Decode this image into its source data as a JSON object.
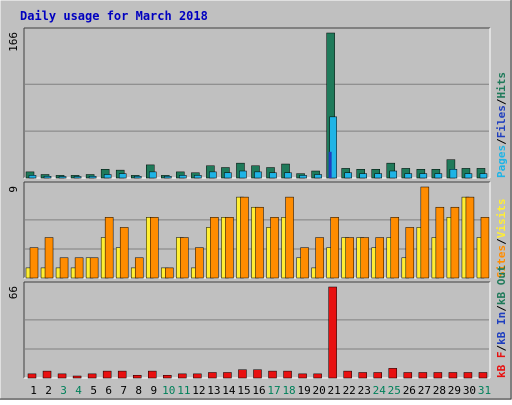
{
  "chart_data": {
    "type": "bar",
    "title": "Daily usage for March 2018",
    "x_categories": [
      "1",
      "2",
      "3",
      "4",
      "5",
      "6",
      "7",
      "8",
      "9",
      "10",
      "11",
      "12",
      "13",
      "14",
      "15",
      "16",
      "17",
      "18",
      "19",
      "20",
      "21",
      "22",
      "23",
      "24",
      "25",
      "26",
      "27",
      "28",
      "29",
      "30",
      "31"
    ],
    "weekend_days": [
      3,
      4,
      10,
      11,
      17,
      18,
      24,
      25,
      31
    ],
    "panels": [
      {
        "id": "hits",
        "y_max_label": "166",
        "ylim": [
          0,
          166
        ],
        "series": [
          {
            "name": "Hits",
            "color": "#1f7a5a",
            "values": [
              7,
              4,
              3,
              3,
              4,
              10,
              9,
              3,
              15,
              3,
              7,
              6,
              14,
              12,
              17,
              14,
              12,
              16,
              5,
              8,
              166,
              11,
              10,
              10,
              17,
              11,
              10,
              10,
              21,
              11,
              11
            ]
          },
          {
            "name": "Files",
            "color": "#1f3fbf",
            "values": [
              1,
              1,
              1,
              1,
              1,
              1,
              1,
              1,
              1,
              1,
              1,
              1,
              1,
              1,
              1,
              1,
              1,
              1,
              1,
              1,
              30,
              1,
              1,
              1,
              1,
              1,
              1,
              1,
              1,
              1,
              1
            ]
          },
          {
            "name": "Pages",
            "color": "#1fb4e6",
            "values": [
              3,
              2,
              1,
              1,
              2,
              4,
              5,
              2,
              7,
              2,
              3,
              3,
              7,
              6,
              8,
              7,
              6,
              6,
              3,
              4,
              70,
              6,
              5,
              5,
              8,
              5,
              5,
              5,
              10,
              5,
              5
            ]
          }
        ]
      },
      {
        "id": "visits",
        "y_max_label": "9",
        "ylim": [
          0,
          9
        ],
        "series": [
          {
            "name": "Visits",
            "color": "#ffee33",
            "values": [
              1,
              1,
              1,
              1,
              2,
              4,
              3,
              1,
              6,
              1,
              4,
              1,
              5,
              6,
              8,
              7,
              5,
              6,
              2,
              1,
              3,
              4,
              4,
              3,
              4,
              2,
              5,
              4,
              6,
              8,
              4
            ]
          },
          {
            "name": "Sites",
            "color": "#ff8c00",
            "values": [
              3,
              4,
              2,
              2,
              2,
              6,
              5,
              2,
              6,
              1,
              4,
              3,
              6,
              6,
              8,
              7,
              6,
              8,
              3,
              4,
              6,
              4,
              4,
              4,
              6,
              5,
              9,
              7,
              7,
              8,
              6
            ]
          }
        ]
      },
      {
        "id": "kbytes",
        "y_max_label": "66",
        "ylim": [
          0,
          66
        ],
        "series": [
          {
            "name": "kB In",
            "color": "#1f3fbf",
            "values": [
              0,
              0,
              0,
              0,
              0,
              0,
              0,
              0,
              0,
              0,
              0,
              0,
              0,
              0,
              0,
              0,
              0,
              0,
              0,
              0,
              0,
              0,
              0,
              0,
              0,
              0,
              0,
              0,
              0,
              0,
              0
            ]
          },
          {
            "name": "kB Out",
            "color": "#1f7a5a",
            "values": [
              0,
              0,
              0,
              0,
              0,
              0,
              0,
              0,
              0,
              0,
              0,
              0,
              0,
              0,
              0,
              0,
              0,
              0,
              0,
              0,
              0,
              0,
              0,
              0,
              0,
              0,
              0,
              0,
              0,
              0,
              0
            ]
          },
          {
            "name": "kB F",
            "color": "#e81010",
            "values": [
              3,
              5,
              3,
              1,
              3,
              5,
              5,
              2,
              5,
              2,
              3,
              3,
              4,
              4,
              6,
              6,
              5,
              5,
              3,
              3,
              66,
              5,
              4,
              4,
              7,
              4,
              4,
              4,
              4,
              4,
              4
            ]
          }
        ]
      }
    ],
    "legend_labels": {
      "hits": [
        {
          "text": "Pages",
          "color": "#1fb4e6"
        },
        {
          "text": "/",
          "color": "#000000"
        },
        {
          "text": "Files",
          "color": "#1f3fbf"
        },
        {
          "text": "/",
          "color": "#000000"
        },
        {
          "text": "Hits",
          "color": "#1f7a5a"
        }
      ],
      "visits": [
        {
          "text": "Sites",
          "color": "#ff8c00"
        },
        {
          "text": "/",
          "color": "#000000"
        },
        {
          "text": "Visits",
          "color": "#ffee33"
        }
      ],
      "kbytes": [
        {
          "text": "kB F",
          "color": "#e81010"
        },
        {
          "text": "/",
          "color": "#000000"
        },
        {
          "text": "kB In",
          "color": "#1f3fbf"
        },
        {
          "text": "/",
          "color": "#000000"
        },
        {
          "text": "kB Out",
          "color": "#1f7a5a"
        }
      ]
    },
    "colors": {
      "background": "#c0c0c0",
      "gridline": "#808080",
      "title_text": "#0000c0",
      "weekday_label": "#000000",
      "weekend_label": "#00805a"
    }
  }
}
